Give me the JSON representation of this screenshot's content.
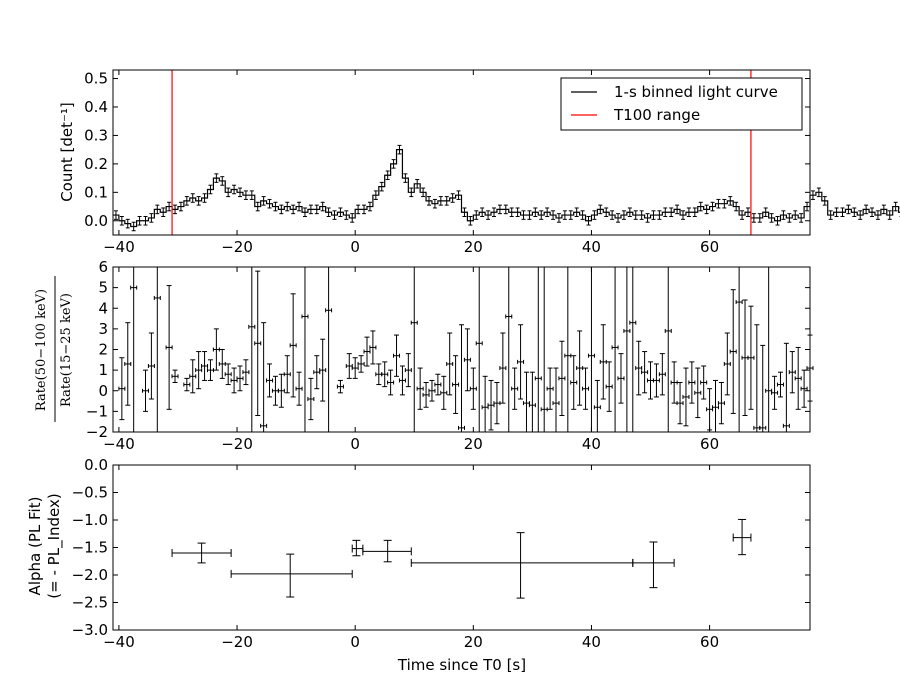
{
  "chart_data": [
    {
      "type": "line",
      "ylabel": "Count [det⁻¹]",
      "xlim": [
        -41,
        77
      ],
      "ylim": [
        -0.05,
        0.53
      ],
      "xticks": [
        "−40",
        "−20",
        "0",
        "20",
        "40",
        "60"
      ],
      "yticks": [
        "0.0",
        "0.1",
        "0.2",
        "0.3",
        "0.4",
        "0.5"
      ],
      "legend": {
        "placement": "top-right",
        "entries": [
          {
            "label": "1-s binned light curve",
            "color": "#000000"
          },
          {
            "label": "T100 range",
            "color": "#ff0000"
          }
        ]
      },
      "t100_range": [
        -31,
        67
      ],
      "bin_width": 1,
      "x_start": -41,
      "series": [
        {
          "name": "1-s binned light curve",
          "values": [
            0.02,
            0.0,
            -0.01,
            -0.02,
            0.0,
            0.0,
            0.01,
            0.04,
            0.03,
            0.05,
            0.04,
            0.05,
            0.07,
            0.08,
            0.07,
            0.08,
            0.11,
            0.15,
            0.14,
            0.1,
            0.11,
            0.1,
            0.09,
            0.09,
            0.05,
            0.07,
            0.06,
            0.05,
            0.04,
            0.05,
            0.04,
            0.05,
            0.03,
            0.04,
            0.04,
            0.05,
            0.03,
            0.02,
            0.03,
            0.02,
            0.01,
            0.04,
            0.04,
            0.05,
            0.09,
            0.12,
            0.16,
            0.2,
            0.25,
            0.15,
            0.1,
            0.13,
            0.1,
            0.07,
            0.06,
            0.07,
            0.07,
            0.08,
            0.09,
            0.03,
            0.0,
            0.02,
            0.03,
            0.02,
            0.03,
            0.04,
            0.04,
            0.03,
            0.03,
            0.02,
            0.02,
            0.03,
            0.02,
            0.03,
            0.02,
            0.01,
            0.02,
            0.02,
            0.03,
            0.02,
            0.0,
            0.02,
            0.04,
            0.03,
            0.02,
            0.01,
            0.02,
            0.03,
            0.02,
            0.02,
            0.01,
            0.02,
            0.02,
            0.03,
            0.03,
            0.04,
            0.02,
            0.03,
            0.03,
            0.05,
            0.04,
            0.05,
            0.06,
            0.06,
            0.07,
            0.05,
            0.02,
            0.03,
            0.01,
            0.01,
            0.03,
            0.01,
            0.0,
            0.02,
            0.01,
            0.02,
            0.01,
            0.05,
            0.09,
            0.1,
            0.07,
            0.02,
            0.03,
            0.03,
            0.04,
            0.03,
            0.02,
            0.04,
            0.03,
            0.02,
            0.04,
            0.02,
            0.05,
            0.03
          ],
          "errors": 0.015
        }
      ]
    },
    {
      "type": "scatter",
      "ylabel": "Rate(50−100 keV) / Rate(15−25 keV)",
      "xlim": [
        -41,
        77
      ],
      "ylim": [
        -2,
        6
      ],
      "xticks": [
        "−40",
        "−20",
        "0",
        "20",
        "40",
        "60"
      ],
      "yticks": [
        "−2",
        "−1",
        "0",
        "1",
        "2",
        "3",
        "4",
        "5",
        "6"
      ],
      "points": [
        {
          "x": -39.5,
          "y": 0.1,
          "e": 1.5
        },
        {
          "x": -38.5,
          "y": 1.3,
          "e": 2.0
        },
        {
          "x": -37.5,
          "y": 5.0,
          "e": 9
        },
        {
          "x": -35.5,
          "y": 0.0,
          "e": 1.0
        },
        {
          "x": -34.5,
          "y": 1.2,
          "e": 1.6
        },
        {
          "x": -33.5,
          "y": 4.5,
          "e": 9
        },
        {
          "x": -31.5,
          "y": 2.1,
          "e": 3.0
        },
        {
          "x": -30.5,
          "y": 0.7,
          "e": 0.3
        },
        {
          "x": -28.5,
          "y": 0.3,
          "e": 0.3
        },
        {
          "x": -27.5,
          "y": 0.7,
          "e": 0.8
        },
        {
          "x": -26.5,
          "y": 1.0,
          "e": 0.9
        },
        {
          "x": -25.5,
          "y": 1.2,
          "e": 0.7
        },
        {
          "x": -24.5,
          "y": 1.0,
          "e": 0.5
        },
        {
          "x": -23.5,
          "y": 2.0,
          "e": 1.0
        },
        {
          "x": -22.5,
          "y": 1.3,
          "e": 0.7
        },
        {
          "x": -21.5,
          "y": 0.8,
          "e": 0.5
        },
        {
          "x": -20.5,
          "y": 0.5,
          "e": 0.6
        },
        {
          "x": -19.5,
          "y": 0.6,
          "e": 0.6
        },
        {
          "x": -18.5,
          "y": 0.9,
          "e": 0.6
        },
        {
          "x": -17.5,
          "y": 3.1,
          "e": 9
        },
        {
          "x": -16.5,
          "y": 2.3,
          "e": 3.5
        },
        {
          "x": -15.5,
          "y": -1.7,
          "e": 5
        },
        {
          "x": -14.5,
          "y": 0.5,
          "e": 0.8
        },
        {
          "x": -13.5,
          "y": 0.0,
          "e": 0.7
        },
        {
          "x": -12.5,
          "y": 0.0,
          "e": 0.8
        },
        {
          "x": -11.5,
          "y": 0.8,
          "e": 0.9
        },
        {
          "x": -10.5,
          "y": 2.2,
          "e": 2.5
        },
        {
          "x": -9.5,
          "y": 0.1,
          "e": 0.8
        },
        {
          "x": -8.5,
          "y": 3.6,
          "e": 9
        },
        {
          "x": -7.5,
          "y": -0.4,
          "e": 1.0
        },
        {
          "x": -6.5,
          "y": 0.9,
          "e": 0.8
        },
        {
          "x": -5.5,
          "y": 1.0,
          "e": 1.5
        },
        {
          "x": -4.5,
          "y": 3.9,
          "e": 9
        },
        {
          "x": -2.5,
          "y": 0.2,
          "e": 0.3
        },
        {
          "x": -1.0,
          "y": 1.2,
          "e": 0.6
        },
        {
          "x": 0.0,
          "y": 1.1,
          "e": 0.5
        },
        {
          "x": 1.0,
          "y": 1.3,
          "e": 0.4
        },
        {
          "x": 2.0,
          "y": 1.9,
          "e": 0.7
        },
        {
          "x": 3.0,
          "y": 2.1,
          "e": 0.8
        },
        {
          "x": 4.0,
          "y": 0.8,
          "e": 0.5
        },
        {
          "x": 5.0,
          "y": 0.8,
          "e": 0.6
        },
        {
          "x": 6.0,
          "y": 0.4,
          "e": 0.6
        },
        {
          "x": 7.0,
          "y": 1.7,
          "e": 1.0
        },
        {
          "x": 8.0,
          "y": 0.5,
          "e": 0.7
        },
        {
          "x": 9.0,
          "y": 1.0,
          "e": 0.8
        },
        {
          "x": 10.0,
          "y": 3.3,
          "e": 9
        },
        {
          "x": 11.0,
          "y": 0.1,
          "e": 1.0
        },
        {
          "x": 12.0,
          "y": -0.2,
          "e": 0.6
        },
        {
          "x": 13.0,
          "y": 0.0,
          "e": 0.5
        },
        {
          "x": 14.0,
          "y": 0.3,
          "e": 0.5
        },
        {
          "x": 15.0,
          "y": -0.1,
          "e": 0.8
        },
        {
          "x": 16.0,
          "y": 1.3,
          "e": 1.5
        },
        {
          "x": 17.0,
          "y": 0.3,
          "e": 1.4
        },
        {
          "x": 18.0,
          "y": -1.8,
          "e": 5
        },
        {
          "x": 19.0,
          "y": 1.5,
          "e": 1.5
        },
        {
          "x": 20.0,
          "y": 0.1,
          "e": 1.0
        },
        {
          "x": 21.0,
          "y": 2.3,
          "e": 9
        },
        {
          "x": 22.0,
          "y": -0.8,
          "e": 1.5
        },
        {
          "x": 23.0,
          "y": -0.7,
          "e": 1.2
        },
        {
          "x": 24.0,
          "y": -0.6,
          "e": 1.0
        },
        {
          "x": 25.0,
          "y": 1.1,
          "e": 1.7
        },
        {
          "x": 26.0,
          "y": 3.6,
          "e": 9
        },
        {
          "x": 27.0,
          "y": 0.1,
          "e": 1.0
        },
        {
          "x": 28.0,
          "y": 1.4,
          "e": 1.8
        },
        {
          "x": 29.0,
          "y": -0.6,
          "e": 1.5
        },
        {
          "x": 30.0,
          "y": -0.7,
          "e": 1.6
        },
        {
          "x": 31.0,
          "y": 0.6,
          "e": 9
        },
        {
          "x": 32.0,
          "y": -0.9,
          "e": 9
        },
        {
          "x": 33.0,
          "y": 0.1,
          "e": 1.0
        },
        {
          "x": 34.0,
          "y": -0.6,
          "e": 1.7
        },
        {
          "x": 35.0,
          "y": 0.6,
          "e": 1.8
        },
        {
          "x": 36.0,
          "y": 1.7,
          "e": 9
        },
        {
          "x": 37.0,
          "y": 0.4,
          "e": 1.3
        },
        {
          "x": 38.0,
          "y": 1.1,
          "e": 1.8
        },
        {
          "x": 39.0,
          "y": 0.1,
          "e": 1.0
        },
        {
          "x": 40.0,
          "y": 1.7,
          "e": 9
        },
        {
          "x": 41.0,
          "y": -0.8,
          "e": 1.3
        },
        {
          "x": 42.0,
          "y": 1.4,
          "e": 1.8
        },
        {
          "x": 43.0,
          "y": 0.2,
          "e": 1.2
        },
        {
          "x": 44.0,
          "y": 2.1,
          "e": 9
        },
        {
          "x": 45.0,
          "y": 0.6,
          "e": 1.2
        },
        {
          "x": 46.0,
          "y": 2.9,
          "e": 9
        },
        {
          "x": 47.0,
          "y": 3.3,
          "e": 9
        },
        {
          "x": 48.0,
          "y": 1.1,
          "e": 1.3
        },
        {
          "x": 49.0,
          "y": 0.9,
          "e": 1.0
        },
        {
          "x": 50.0,
          "y": 0.5,
          "e": 0.9
        },
        {
          "x": 51.0,
          "y": 0.5,
          "e": 0.8
        },
        {
          "x": 52.0,
          "y": 0.8,
          "e": 1.0
        },
        {
          "x": 53.0,
          "y": 2.9,
          "e": 9
        },
        {
          "x": 54.0,
          "y": 0.4,
          "e": 1.0
        },
        {
          "x": 55.0,
          "y": -0.6,
          "e": 1.0
        },
        {
          "x": 56.0,
          "y": -0.3,
          "e": 1.4
        },
        {
          "x": 57.0,
          "y": 0.4,
          "e": 1.0
        },
        {
          "x": 58.0,
          "y": -0.1,
          "e": 1.2
        },
        {
          "x": 59.0,
          "y": 0.4,
          "e": 0.8
        },
        {
          "x": 60.0,
          "y": -0.9,
          "e": 1.0
        },
        {
          "x": 61.0,
          "y": -0.8,
          "e": 1.3
        },
        {
          "x": 62.0,
          "y": -0.6,
          "e": 1.0
        },
        {
          "x": 63.0,
          "y": 1.3,
          "e": 1.5
        },
        {
          "x": 64.0,
          "y": 1.9,
          "e": 3.0
        },
        {
          "x": 65.0,
          "y": 4.3,
          "e": 9
        },
        {
          "x": 66.0,
          "y": 1.6,
          "e": 2.8
        },
        {
          "x": 67.0,
          "y": 1.6,
          "e": 2.5
        },
        {
          "x": 68.0,
          "y": -1.8,
          "e": 5
        },
        {
          "x": 69.0,
          "y": -1.8,
          "e": 4
        },
        {
          "x": 70.0,
          "y": 0.0,
          "e": 9
        },
        {
          "x": 71.0,
          "y": -0.1,
          "e": 0.8
        },
        {
          "x": 72.0,
          "y": 0.3,
          "e": 0.6
        },
        {
          "x": 73.0,
          "y": -1.7,
          "e": 4
        },
        {
          "x": 74.0,
          "y": 0.9,
          "e": 1.0
        },
        {
          "x": 75.0,
          "y": 0.6,
          "e": 1.5
        },
        {
          "x": 76.0,
          "y": 0.1,
          "e": 0.9
        },
        {
          "x": 77.0,
          "y": 1.1,
          "e": 1.6
        }
      ]
    },
    {
      "type": "scatter",
      "xlabel": "Time since T0 [s]",
      "ylabel": "Alpha (PL Fit)\n(= - PL_Index)",
      "xlim": [
        -41,
        77
      ],
      "ylim": [
        -3.0,
        0.0
      ],
      "xticks": [
        "−40",
        "−20",
        "0",
        "20",
        "40",
        "60"
      ],
      "yticks": [
        "−3.0",
        "−2.5",
        "−2.0",
        "−1.5",
        "−1.0",
        "−0.5",
        "0.0"
      ],
      "points": [
        {
          "x": -26,
          "x_lo": -31,
          "x_hi": -21,
          "y": -1.6,
          "y_lo": -1.78,
          "y_hi": -1.42
        },
        {
          "x": -11,
          "x_lo": -21,
          "x_hi": -0.5,
          "y": -1.98,
          "y_lo": -2.4,
          "y_hi": -1.62
        },
        {
          "x": 0.2,
          "x_lo": -0.5,
          "x_hi": 1.3,
          "y": -1.52,
          "y_lo": -1.65,
          "y_hi": -1.37
        },
        {
          "x": 5.5,
          "x_lo": 1.3,
          "x_hi": 9.5,
          "y": -1.57,
          "y_lo": -1.76,
          "y_hi": -1.37
        },
        {
          "x": 28,
          "x_lo": 9.5,
          "x_hi": 47,
          "y": -1.78,
          "y_lo": -2.42,
          "y_hi": -1.23
        },
        {
          "x": 50.5,
          "x_lo": 47,
          "x_hi": 54,
          "y": -1.78,
          "y_lo": -2.23,
          "y_hi": -1.4
        },
        {
          "x": 65.5,
          "x_lo": 64,
          "x_hi": 67,
          "y": -1.32,
          "y_lo": -1.63,
          "y_hi": -0.99
        }
      ]
    }
  ]
}
